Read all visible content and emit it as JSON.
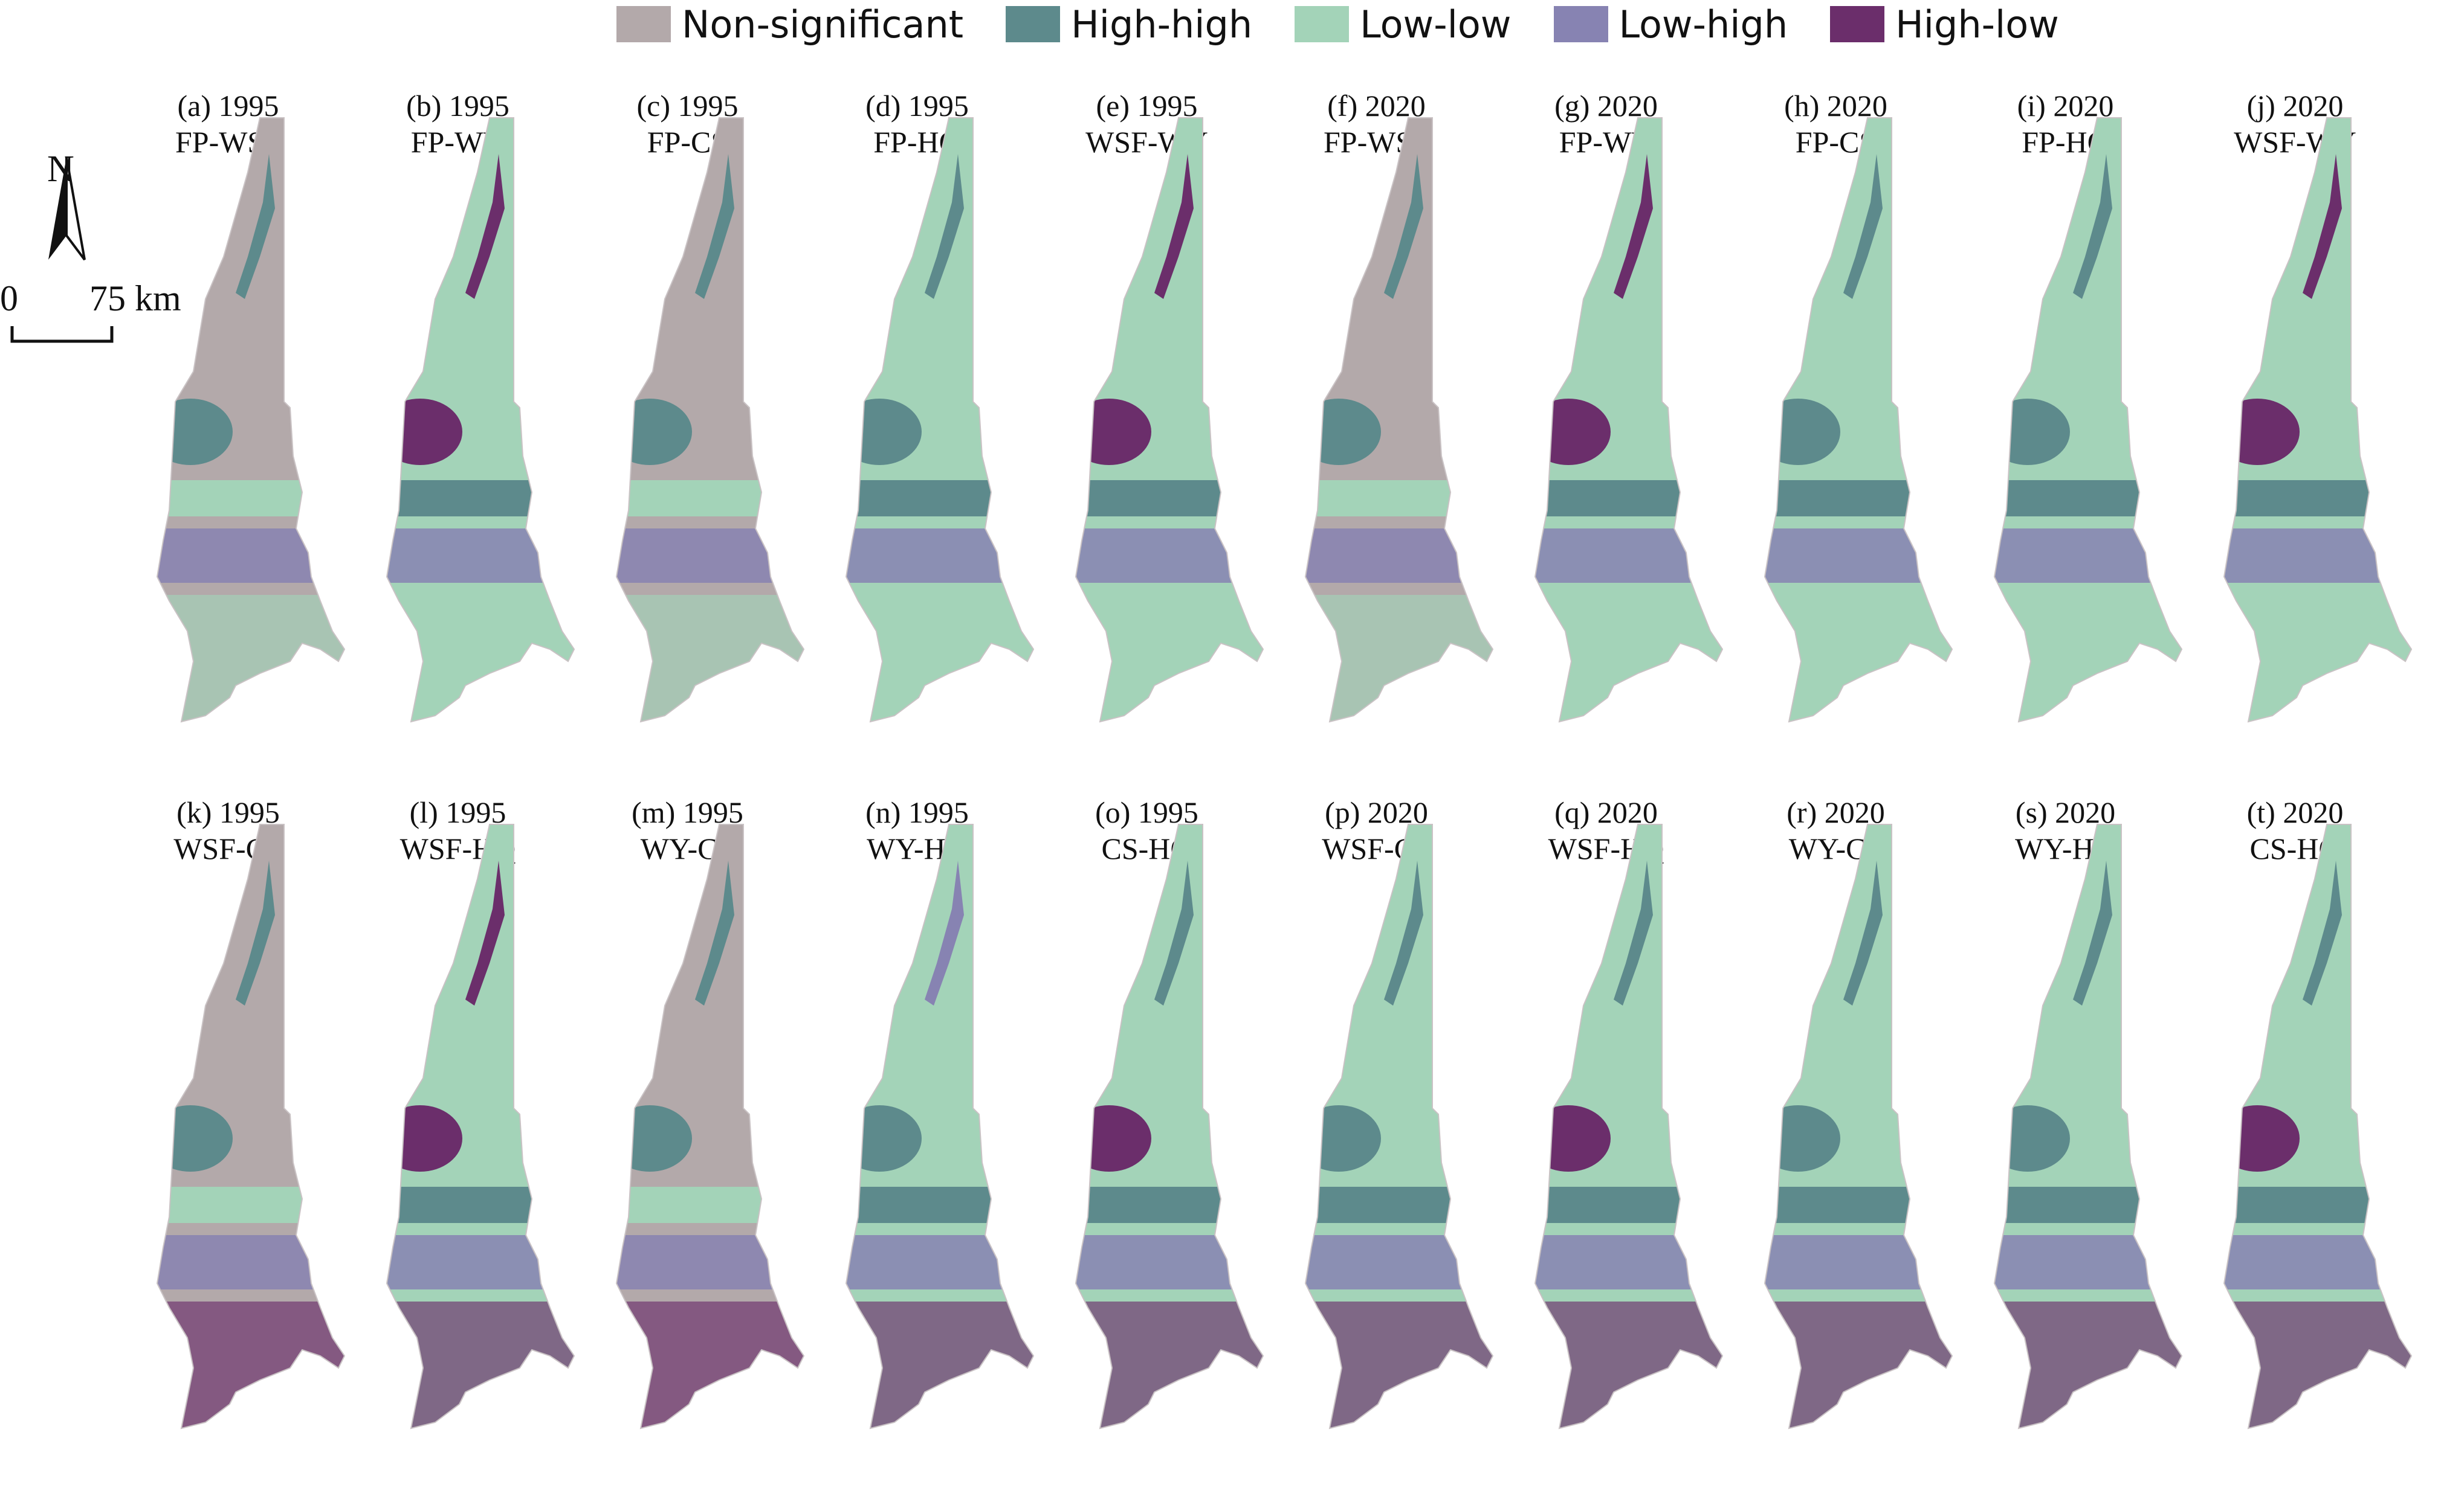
{
  "colors": {
    "non_significant": "#b3a9aa",
    "high_high": "#5d8a8c",
    "low_low": "#a3d3b8",
    "low_high": "#8783b2",
    "high_low": "#6b2e6b"
  },
  "legend": [
    {
      "key": "non_significant",
      "label": "Non-significant"
    },
    {
      "key": "high_high",
      "label": "High-high"
    },
    {
      "key": "low_low",
      "label": "Low-low"
    },
    {
      "key": "low_high",
      "label": "Low-high"
    },
    {
      "key": "high_low",
      "label": "High-low"
    }
  ],
  "north_arrow": {
    "label": "N"
  },
  "scale_bar": {
    "zero": "0",
    "value": "75 km"
  },
  "panels": [
    {
      "id": "a",
      "year": "(a) 1995",
      "pair": "FP-WSF",
      "dominant": "non_significant"
    },
    {
      "id": "b",
      "year": "(b) 1995",
      "pair": "FP-WY",
      "dominant": "low_low"
    },
    {
      "id": "c",
      "year": "(c) 1995",
      "pair": "FP-CS",
      "dominant": "non_significant"
    },
    {
      "id": "d",
      "year": "(d) 1995",
      "pair": "FP-HQ",
      "dominant": "low_low"
    },
    {
      "id": "e",
      "year": "(e) 1995",
      "pair": "WSF-WY",
      "dominant": "low_low"
    },
    {
      "id": "f",
      "year": "(f) 2020",
      "pair": "FP-WSF",
      "dominant": "non_significant"
    },
    {
      "id": "g",
      "year": "(g) 2020",
      "pair": "FP-WY",
      "dominant": "low_low"
    },
    {
      "id": "h",
      "year": "(h) 2020",
      "pair": "FP-CS",
      "dominant": "low_low"
    },
    {
      "id": "i",
      "year": "(i) 2020",
      "pair": "FP-HQ",
      "dominant": "low_low"
    },
    {
      "id": "j",
      "year": "(j) 2020",
      "pair": "WSF-WY",
      "dominant": "low_low"
    },
    {
      "id": "k",
      "year": "(k) 1995",
      "pair": "WSF-CS",
      "dominant": "non_significant"
    },
    {
      "id": "l",
      "year": "(l) 1995",
      "pair": "WSF-HQ",
      "dominant": "low_low"
    },
    {
      "id": "m",
      "year": "(m) 1995",
      "pair": "WY-CS",
      "dominant": "non_significant"
    },
    {
      "id": "n",
      "year": "(n) 1995",
      "pair": "WY-HQ",
      "dominant": "low_low"
    },
    {
      "id": "o",
      "year": "(o) 1995",
      "pair": "CS-HQ",
      "dominant": "low_low"
    },
    {
      "id": "p",
      "year": "(p) 2020",
      "pair": "WSF-CS",
      "dominant": "low_low"
    },
    {
      "id": "q",
      "year": "(q) 2020",
      "pair": "WSF-HQ",
      "dominant": "low_low"
    },
    {
      "id": "r",
      "year": "(r) 2020",
      "pair": "WY-CS",
      "dominant": "low_low"
    },
    {
      "id": "s",
      "year": "(s) 2020",
      "pair": "WY-HQ",
      "dominant": "low_low"
    },
    {
      "id": "t",
      "year": "(t) 2020",
      "pair": "CS-HQ",
      "dominant": "low_low"
    }
  ]
}
